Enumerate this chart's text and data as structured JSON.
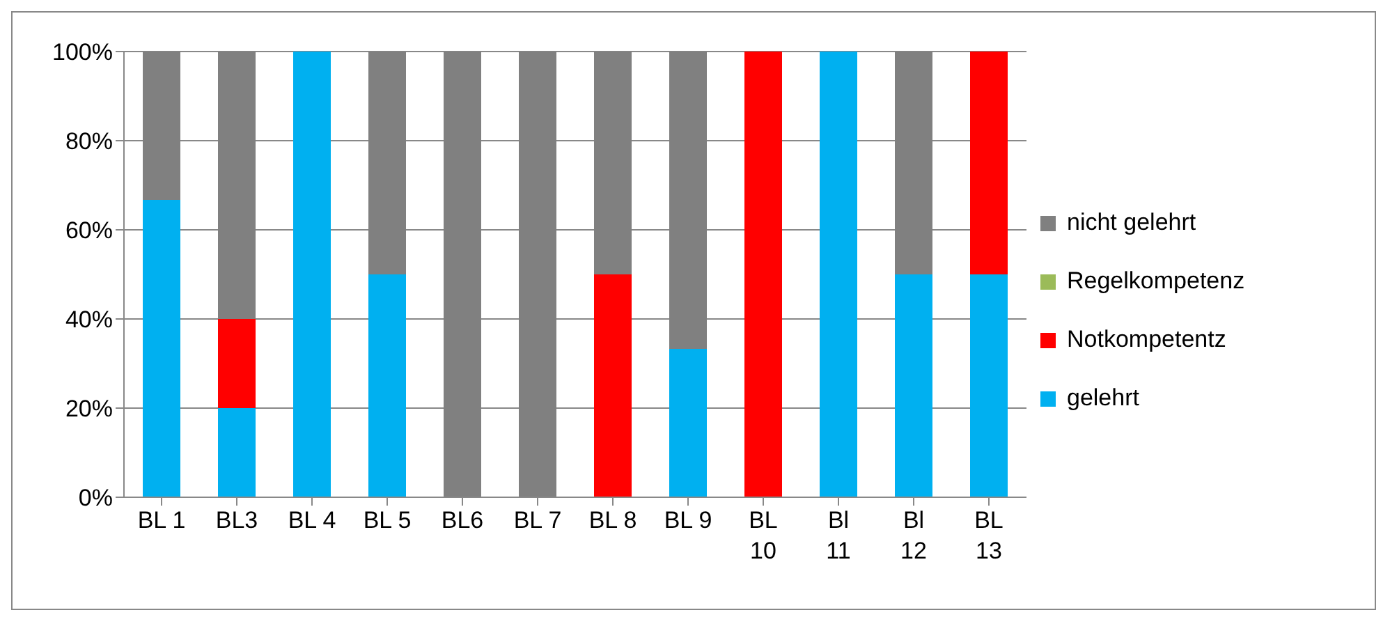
{
  "chart_data": {
    "type": "bar",
    "stacked": true,
    "categories": [
      "BL 1",
      "BL3",
      "BL 4",
      "BL 5",
      "BL6",
      "BL 7",
      "BL 8",
      "BL 9",
      "BL 10",
      "Bl 11",
      "Bl 12",
      "BL 13"
    ],
    "series": [
      {
        "name": "gelehrt",
        "color": "#00b0f0",
        "values": [
          66.7,
          20,
          100,
          50,
          0,
          0,
          0,
          33.3,
          0,
          100,
          50,
          50
        ]
      },
      {
        "name": "Notkompetentz",
        "color": "#ff0000",
        "values": [
          0,
          20,
          0,
          0,
          0,
          0,
          50,
          0,
          100,
          0,
          0,
          50
        ]
      },
      {
        "name": "Regelkompetenz",
        "color": "#9bbb59",
        "values": [
          0,
          0,
          0,
          0,
          0,
          0,
          0,
          0,
          0,
          0,
          0,
          0
        ]
      },
      {
        "name": "nicht gelehrt",
        "color": "#808080",
        "values": [
          33.3,
          60,
          0,
          50,
          100,
          100,
          50,
          66.7,
          0,
          0,
          50,
          0
        ]
      }
    ],
    "ylim": [
      0,
      100
    ],
    "yticks": [
      {
        "value": 0,
        "label": "0%"
      },
      {
        "value": 20,
        "label": "20%"
      },
      {
        "value": 40,
        "label": "40%"
      },
      {
        "value": 60,
        "label": "60%"
      },
      {
        "value": 80,
        "label": "80%"
      },
      {
        "value": 100,
        "label": "100%"
      }
    ],
    "grid": "y",
    "legend": "right"
  }
}
